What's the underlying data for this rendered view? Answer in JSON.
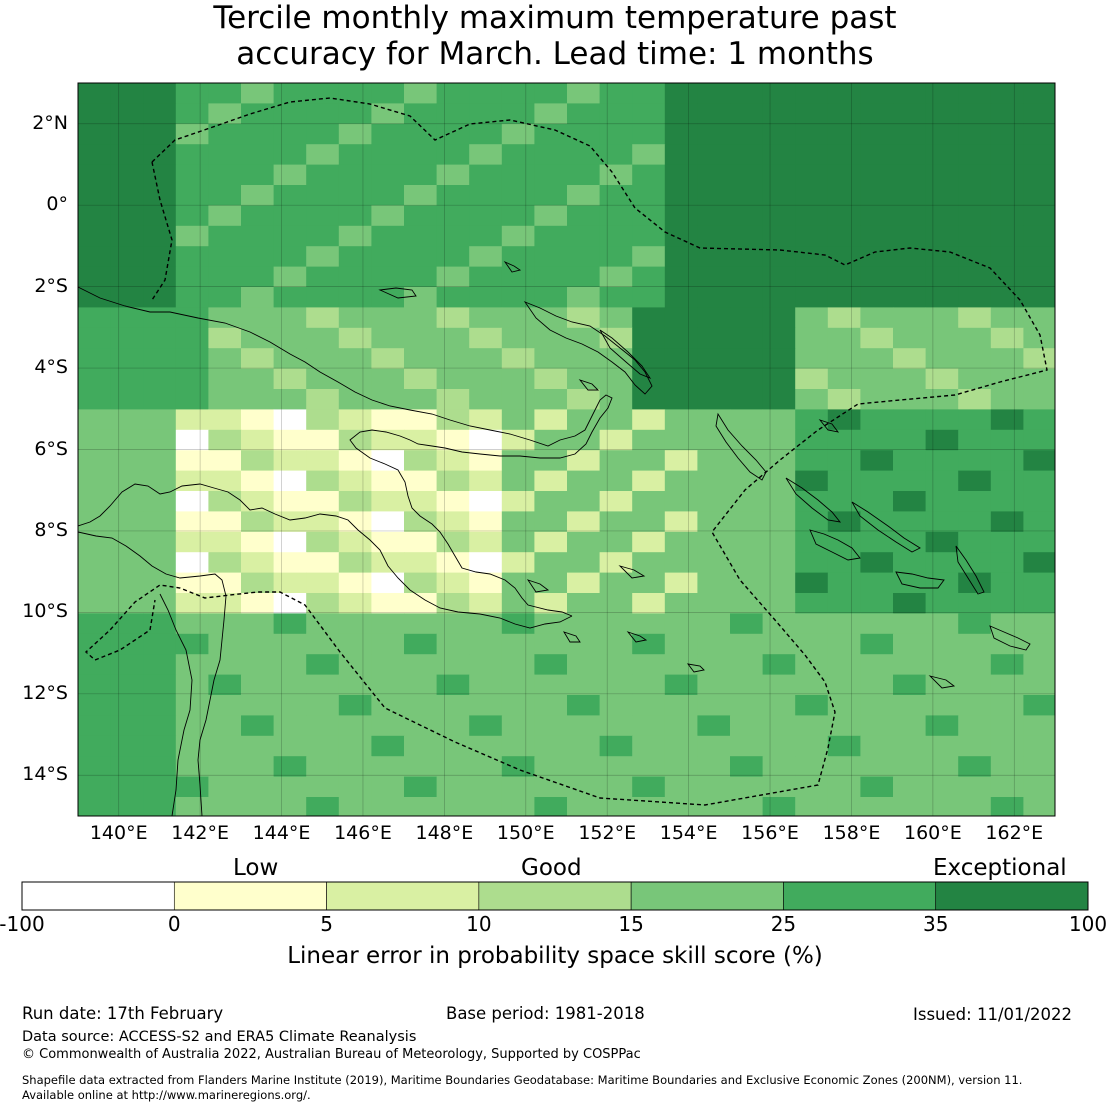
{
  "title": {
    "line1": "Tercile monthly maximum temperature past",
    "line2": "accuracy for March. Lead time: 1 months"
  },
  "map": {
    "lat_labels": [
      "2°N",
      "0°",
      "2°S",
      "4°S",
      "6°S",
      "8°S",
      "10°S",
      "12°S",
      "14°S"
    ],
    "lon_labels": [
      "140°E",
      "142°E",
      "144°E",
      "146°E",
      "148°E",
      "150°E",
      "152°E",
      "154°E",
      "156°E",
      "158°E",
      "160°E",
      "162°E"
    ],
    "lat_values": [
      2,
      0,
      -2,
      -4,
      -6,
      -8,
      -10,
      -12,
      -14
    ],
    "lon_values": [
      140,
      142,
      144,
      146,
      148,
      150,
      152,
      154,
      156,
      158,
      160,
      162
    ],
    "extent": {
      "lon": [
        139,
        163
      ],
      "lat": [
        -15,
        3
      ]
    }
  },
  "colorbar": {
    "category_labels": {
      "low": "Low",
      "good": "Good",
      "exceptional": "Exceptional"
    },
    "ticks": [
      "-100",
      "0",
      "5",
      "10",
      "15",
      "25",
      "35",
      "100"
    ],
    "colors": [
      "#ffffff",
      "#ffffcc",
      "#d9f0a3",
      "#addd8e",
      "#78c679",
      "#41ab5d",
      "#238443"
    ],
    "xlabel": "Linear error in probability space skill score (%)"
  },
  "footer": {
    "run_date": "Run date: 17th February",
    "base_period": "Base period: 1981-2018",
    "issued": "Issued: 11/01/2022",
    "data_source": "Data source: ACCESS-S2 and ERA5 Climate Reanalysis",
    "copyright": "© Commonwealth of Australia 2022, Australian Bureau of Meteorology, Supported by COSPPac",
    "shapefile_line1": "Shapefile data extracted from Flanders Marine Institute (2019), Maritime Boundaries Geodatabase: Maritime Boundaries and Exclusive Economic Zones (200NM), version 11.",
    "shapefile_line2": "Available online at http://www.marineregions.org/."
  }
}
